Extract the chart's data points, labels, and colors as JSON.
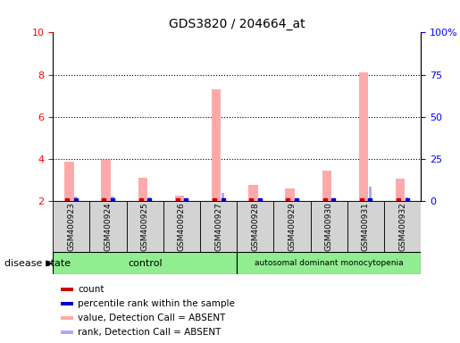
{
  "title": "GDS3820 / 204664_at",
  "samples": [
    "GSM400923",
    "GSM400924",
    "GSM400925",
    "GSM400926",
    "GSM400927",
    "GSM400928",
    "GSM400929",
    "GSM400930",
    "GSM400931",
    "GSM400932"
  ],
  "control_count": 5,
  "disease_count": 5,
  "control_label": "control",
  "disease_label": "autosomal dominant monocytopenia",
  "disease_state_label": "disease state",
  "ylim_left": [
    2,
    10
  ],
  "ylim_right": [
    0,
    100
  ],
  "yticks_left": [
    2,
    4,
    6,
    8,
    10
  ],
  "yticks_right": [
    0,
    25,
    50,
    75,
    100
  ],
  "ytick_labels_right": [
    "0",
    "25",
    "50",
    "75",
    "100%"
  ],
  "value_absent": [
    3.85,
    3.95,
    3.1,
    2.25,
    7.3,
    2.75,
    2.6,
    3.45,
    8.1,
    3.05
  ],
  "rank_absent": [
    2.18,
    2.2,
    2.15,
    2.1,
    2.35,
    2.12,
    2.1,
    2.13,
    2.65,
    2.17
  ],
  "count_color": "#cc0000",
  "percentile_color": "#0000cc",
  "value_absent_color": "#ffaaaa",
  "rank_absent_color": "#aaaaff",
  "background_xtick": "#d3d3d3",
  "control_bg": "#90ee90",
  "disease_bg": "#90ee90",
  "legend_items": [
    "count",
    "percentile rank within the sample",
    "value, Detection Call = ABSENT",
    "rank, Detection Call = ABSENT"
  ],
  "legend_colors": [
    "#cc0000",
    "#0000cc",
    "#ffaaaa",
    "#aaaaff"
  ]
}
